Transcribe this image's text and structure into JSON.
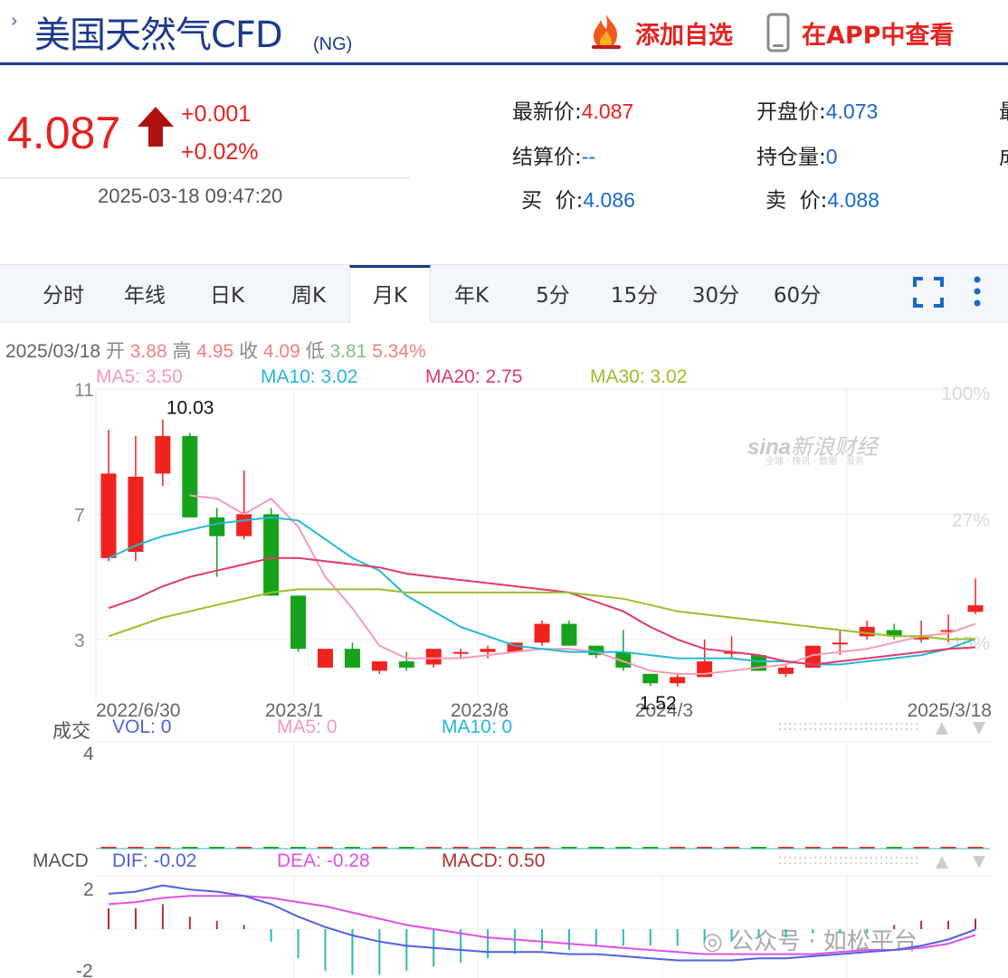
{
  "header": {
    "title": "美国天然气CFD",
    "subtitle": "(NG)",
    "add_watchlist": "添加自选",
    "view_in_app": "在APP中查看",
    "icons": [
      "double-chevron-icon",
      "flame-icon",
      "phone-icon"
    ]
  },
  "quote": {
    "price": "4.087",
    "change": "+0.001",
    "change_pct": "+0.02%",
    "time": "2025-03-18 09:47:20",
    "fields": [
      {
        "label": "最新价:",
        "value": "4.087"
      },
      {
        "label": "开盘价:",
        "value": "4.073"
      },
      {
        "label": "最",
        "value": ""
      },
      {
        "label": "结算价:",
        "value": "--"
      },
      {
        "label": "持仓量:",
        "value": "0"
      },
      {
        "label": "成",
        "value": ""
      },
      {
        "label": "买  价:",
        "value": "4.086"
      },
      {
        "label": "卖  价:",
        "value": "4.088"
      }
    ]
  },
  "tabs": [
    "分时",
    "年线",
    "日K",
    "周K",
    "月K",
    "年K",
    "5分",
    "15分",
    "30分",
    "60分"
  ],
  "active_tab": "月K",
  "kline_info": {
    "date": "2025/03/18",
    "open_label": "开",
    "open": "3.88",
    "high_label": "高",
    "high": "4.95",
    "close_label": "收",
    "close": "4.09",
    "low_label": "低",
    "low": "3.81",
    "amplitude": "5.34%"
  },
  "ma_info": {
    "ma5": "MA5: 3.50",
    "ma10": "MA10: 3.02",
    "ma20": "MA20: 2.75",
    "ma30": "MA30: 3.02"
  },
  "vol_info": {
    "label": "成交",
    "vol": "VOL: 0",
    "ma5": "MA5: 0",
    "ma10": "MA10: 0"
  },
  "macd_info": {
    "label": "MACD",
    "dif": "DIF: -0.02",
    "dea": "DEA: -0.28",
    "macd": "MACD: 0.50"
  },
  "watermark": {
    "brand": "新浪财经",
    "sina": "sina",
    "tagline": "全球 · 快讯 · 数据 · 服务",
    "wechat": "公众号 · 如松平台"
  },
  "colors": {
    "up": "#f0231e",
    "down": "#16a21a",
    "ma5": "#f59ab8",
    "ma10": "#22b8d8",
    "ma20": "#e03a6a",
    "ma30": "#9cbd2a",
    "dif": "#5060e0",
    "dea": "#e050e8",
    "header": "#1d3a8a"
  },
  "chart_data": [
    {
      "type": "candlestick",
      "y_ticks": [
        "11",
        "7",
        "3"
      ],
      "ylim": [
        1,
        11
      ],
      "right_ticks": [
        "100%",
        "27%",
        "-15%"
      ],
      "x_labels": [
        "2022/6/30",
        "2023/1",
        "2023/8",
        "2024/3",
        "2025/3/18"
      ],
      "annotations": [
        {
          "text": "10.03",
          "index": 2
        },
        {
          "text": "1.52",
          "index": 20
        }
      ],
      "candles": [
        {
          "o": 5.6,
          "h": 9.7,
          "l": 5.5,
          "c": 8.3
        },
        {
          "o": 5.8,
          "h": 9.5,
          "l": 5.5,
          "c": 8.2
        },
        {
          "o": 8.3,
          "h": 10.03,
          "l": 7.9,
          "c": 9.5
        },
        {
          "o": 9.5,
          "h": 9.6,
          "l": 6.9,
          "c": 6.9
        },
        {
          "o": 6.9,
          "h": 7.2,
          "l": 5.0,
          "c": 6.3
        },
        {
          "o": 6.3,
          "h": 8.4,
          "l": 6.2,
          "c": 7.0
        },
        {
          "o": 7.0,
          "h": 7.2,
          "l": 4.4,
          "c": 4.4
        },
        {
          "o": 4.4,
          "h": 4.4,
          "l": 2.6,
          "c": 2.7
        },
        {
          "o": 2.1,
          "h": 2.7,
          "l": 2.1,
          "c": 2.7
        },
        {
          "o": 2.7,
          "h": 2.9,
          "l": 2.1,
          "c": 2.1
        },
        {
          "o": 2.0,
          "h": 2.3,
          "l": 1.9,
          "c": 2.3
        },
        {
          "o": 2.3,
          "h": 2.6,
          "l": 2.0,
          "c": 2.1
        },
        {
          "o": 2.2,
          "h": 2.7,
          "l": 2.1,
          "c": 2.7
        },
        {
          "o": 2.6,
          "h": 2.7,
          "l": 2.4,
          "c": 2.6
        },
        {
          "o": 2.6,
          "h": 2.8,
          "l": 2.4,
          "c": 2.7
        },
        {
          "o": 2.6,
          "h": 2.9,
          "l": 2.6,
          "c": 2.9
        },
        {
          "o": 2.9,
          "h": 3.6,
          "l": 2.8,
          "c": 3.5
        },
        {
          "o": 3.5,
          "h": 3.6,
          "l": 2.8,
          "c": 2.8
        },
        {
          "o": 2.8,
          "h": 2.8,
          "l": 2.4,
          "c": 2.5
        },
        {
          "o": 2.6,
          "h": 3.3,
          "l": 2.0,
          "c": 2.1
        },
        {
          "o": 1.9,
          "h": 1.9,
          "l": 1.52,
          "c": 1.6
        },
        {
          "o": 1.6,
          "h": 1.9,
          "l": 1.5,
          "c": 1.8
        },
        {
          "o": 1.8,
          "h": 3.0,
          "l": 1.8,
          "c": 2.3
        },
        {
          "o": 2.6,
          "h": 3.1,
          "l": 2.4,
          "c": 2.6
        },
        {
          "o": 2.5,
          "h": 2.5,
          "l": 2.0,
          "c": 2.0
        },
        {
          "o": 1.9,
          "h": 2.2,
          "l": 1.8,
          "c": 2.1
        },
        {
          "o": 2.1,
          "h": 2.8,
          "l": 2.1,
          "c": 2.8
        },
        {
          "o": 2.9,
          "h": 3.3,
          "l": 2.5,
          "c": 2.9
        },
        {
          "o": 3.1,
          "h": 3.6,
          "l": 3.0,
          "c": 3.4
        },
        {
          "o": 3.3,
          "h": 3.5,
          "l": 3.0,
          "c": 3.1
        },
        {
          "o": 3.0,
          "h": 3.6,
          "l": 2.9,
          "c": 3.1
        },
        {
          "o": 3.3,
          "h": 3.8,
          "l": 2.9,
          "c": 3.3
        },
        {
          "o": 3.88,
          "h": 4.95,
          "l": 3.81,
          "c": 4.09
        }
      ],
      "ma": {
        "MA5": [
          null,
          null,
          null,
          7.6,
          7.5,
          7.0,
          7.5,
          6.6,
          5.0,
          4.0,
          2.8,
          2.4,
          2.4,
          2.4,
          2.5,
          2.6,
          2.7,
          2.7,
          2.6,
          2.3,
          2.0,
          1.9,
          1.9,
          2.0,
          2.1,
          2.2,
          2.5,
          2.6,
          2.7,
          2.9,
          3.1,
          3.2,
          3.5
        ],
        "MA10": [
          5.6,
          6.0,
          6.3,
          6.5,
          6.7,
          6.8,
          6.9,
          6.8,
          6.2,
          5.6,
          5.2,
          4.4,
          3.9,
          3.4,
          3.1,
          2.8,
          2.7,
          2.6,
          2.6,
          2.6,
          2.5,
          2.4,
          2.4,
          2.4,
          2.3,
          2.3,
          2.2,
          2.2,
          2.3,
          2.4,
          2.5,
          2.7,
          3.02
        ],
        "MA20": [
          4.0,
          4.3,
          4.7,
          5.0,
          5.2,
          5.4,
          5.6,
          5.6,
          5.5,
          5.4,
          5.3,
          5.1,
          5.0,
          4.9,
          4.8,
          4.7,
          4.6,
          4.5,
          4.2,
          3.9,
          3.4,
          3.0,
          2.7,
          2.6,
          2.5,
          2.3,
          2.2,
          2.3,
          2.4,
          2.5,
          2.6,
          2.7,
          2.75
        ],
        "MA30": [
          3.1,
          3.4,
          3.7,
          3.9,
          4.1,
          4.3,
          4.5,
          4.6,
          4.6,
          4.6,
          4.6,
          4.5,
          4.5,
          4.5,
          4.5,
          4.5,
          4.5,
          4.5,
          4.4,
          4.3,
          4.1,
          3.9,
          3.8,
          3.7,
          3.6,
          3.5,
          3.4,
          3.3,
          3.2,
          3.1,
          3.1,
          3.0,
          3.02
        ]
      }
    },
    {
      "type": "bar",
      "name": "VOL",
      "y_ticks": [
        "4"
      ],
      "ylim": [
        0,
        4
      ],
      "values": [
        0,
        0,
        0,
        0,
        0,
        0,
        0,
        0,
        0,
        0,
        0,
        0,
        0,
        0,
        0,
        0,
        0,
        0,
        0,
        0,
        0,
        0,
        0,
        0,
        0,
        0,
        0,
        0,
        0,
        0,
        0,
        0,
        0
      ]
    },
    {
      "type": "macd",
      "y_ticks": [
        "2",
        "-2"
      ],
      "ylim": [
        -2,
        2
      ],
      "dif": [
        1.7,
        1.8,
        2.1,
        1.9,
        1.8,
        1.6,
        1.2,
        0.6,
        0.1,
        -0.3,
        -0.6,
        -0.8,
        -0.9,
        -1.0,
        -1.1,
        -1.1,
        -1.1,
        -1.2,
        -1.2,
        -1.3,
        -1.4,
        -1.5,
        -1.5,
        -1.5,
        -1.4,
        -1.4,
        -1.3,
        -1.2,
        -1.1,
        -1.0,
        -0.8,
        -0.5,
        -0.02
      ],
      "dea": [
        1.2,
        1.3,
        1.5,
        1.6,
        1.6,
        1.6,
        1.5,
        1.3,
        1.1,
        0.8,
        0.5,
        0.2,
        0.0,
        -0.2,
        -0.4,
        -0.5,
        -0.6,
        -0.7,
        -0.8,
        -0.9,
        -1.0,
        -1.1,
        -1.2,
        -1.2,
        -1.2,
        -1.2,
        -1.2,
        -1.1,
        -1.0,
        -1.0,
        -0.9,
        -0.7,
        -0.28
      ],
      "macd": [
        1.0,
        1.0,
        1.2,
        0.6,
        0.4,
        0.2,
        -0.6,
        -1.4,
        -2.0,
        -2.2,
        -2.2,
        -2.0,
        -1.8,
        -1.6,
        -1.4,
        -1.2,
        -1.0,
        -1.0,
        -0.8,
        -0.8,
        -0.8,
        -0.8,
        -0.6,
        -0.6,
        -0.4,
        -0.4,
        -0.2,
        -0.2,
        -0.2,
        0.2,
        0.4,
        0.4,
        0.5
      ]
    }
  ]
}
